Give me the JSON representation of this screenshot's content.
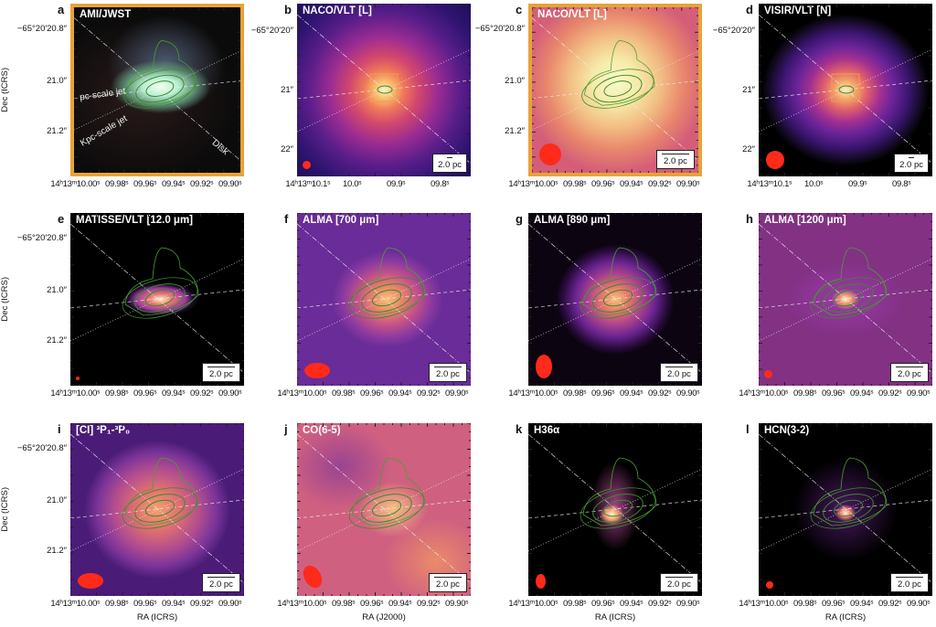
{
  "figure": {
    "panels": [
      {
        "letter": "a",
        "title": "AMI/JWST",
        "bg": "radial-gradient(ellipse 30% 16% at 52% 48%, #f4fff0 0, #b8f0d0 35%, #5a8a70 70%, rgba(40,60,50,0) 100%), radial-gradient(ellipse 35% 30% at 55% 35%, rgba(90,110,140,0.8), rgba(0,0,0,0) 100%), radial-gradient(ellipse 60% 50% at 40% 55%, #2a1a1a, #0b0b0b 100%)",
        "bordered": true,
        "yticks": [
          "−65°20′20.8″",
          "21.0″",
          "21.2″"
        ],
        "xticks": [
          "14ʰ13ᵐ10.00ˢ",
          "09.98ˢ",
          "09.96ˢ",
          "09.94ˢ",
          "09.92ˢ",
          "09.90ˢ"
        ],
        "ylabel": "Dec (ICRS)",
        "beam": null,
        "scale": null,
        "notes": [
          "pc-scale jet",
          "Kpc-scale jet",
          "Disk"
        ],
        "tickset": "A"
      },
      {
        "letter": "b",
        "title": "NACO/VLT [L]",
        "bg": "radial-gradient(circle at 50% 50%, #fbf8c0 0, #f8c070 7%, #f07a5a 16%, #d2476e 28%, #9a2c92 44%, #5a1e8a 62%, #2e1470 82%, #1e0e58 100%)",
        "bordered": false,
        "yticks": [
          "−65°20′20″",
          "21″",
          "22″"
        ],
        "xticks": [
          "14ʰ13ᵐ10.1ˢ",
          "10.0ˢ",
          "09.9ˢ",
          "09.8ˢ"
        ],
        "beam": "s",
        "scale": "2.0 pc",
        "box": true,
        "tickset": "B"
      },
      {
        "letter": "c",
        "title": "NACO/VLT [L]",
        "bg": "radial-gradient(ellipse 55% 55% at 50% 45%, #f8fbc8 0, #f6eaa8 25%, #f2be84 50%, #e8866c 75%, #d45e78 100%)",
        "bordered": true,
        "yticks": [
          "−65°20′20.8″",
          "21.0″",
          "21.2″"
        ],
        "xticks": [
          "14ʰ13ᵐ10.00ˢ",
          "09.98ˢ",
          "09.96ˢ",
          "09.94ˢ",
          "09.92ˢ",
          "09.90ˢ"
        ],
        "beam": "xl",
        "scale": "2.0 pc",
        "tickset": "A"
      },
      {
        "letter": "d",
        "title": "VISIR/VLT [N]",
        "bg": "radial-gradient(ellipse 48% 44% at 50% 50%, #fbf2b0 0, #f5a868 12%, #e0606c 26%, #a43090 42%, #6a2498 58%, #3a1670 76%, #0a0610 96%, #000 100%)",
        "bordered": false,
        "yticks": [
          "−65°20′20″",
          "21″",
          "22″"
        ],
        "xticks": [
          "14ʰ13ᵐ10.1ˢ",
          "10.0ˢ",
          "09.9ˢ",
          "09.8ˢ"
        ],
        "beam": "m",
        "scale": "2.0 pc",
        "box": true,
        "tickset": "B"
      },
      {
        "letter": "e",
        "title": "MATISSE/VLT [12.0 μm]",
        "bg": "radial-gradient(ellipse 22% 10% at 52% 50%, #fbf3c0 0, #e87a74 30%, #9a3a9a 65%, rgba(60,20,90,0.5) 85%, rgba(0,0,0,0) 100%), #000",
        "bordered": false,
        "yticks": [
          "−65°20′20.8″",
          "21.0″",
          "21.2″"
        ],
        "xticks": [
          "14ʰ13ᵐ10.00ˢ",
          "09.98ˢ",
          "09.96ˢ",
          "09.94ˢ",
          "09.92ˢ",
          "09.90ˢ"
        ],
        "ylabel": "Dec (ICRS)",
        "beam": "xs",
        "scale": "2.0 pc",
        "tickset": "A"
      },
      {
        "letter": "f",
        "title": "ALMA [700 μm]",
        "bg": "radial-gradient(ellipse 32% 28% at 52% 50%, #f7c07a 0, #ea8a68 25%, #c2508a 55%, #8a3aa0 80%, #6a2c98 100%), #5a2490",
        "bordered": false,
        "yticks": [],
        "xticks": [
          "14ʰ13ᵐ10.00ˢ",
          "09.98ˢ",
          "09.96ˢ",
          "09.94ˢ",
          "09.92ˢ",
          "09.90ˢ"
        ],
        "beam": "eh",
        "scale": "2.0 pc",
        "tickset": "A"
      },
      {
        "letter": "g",
        "title": "ALMA [890 μm]",
        "bg": "radial-gradient(ellipse 34% 32% at 50% 50%, #f7c07a 0, #e67a6a 22%, #b0448e 45%, #6a2490 68%, #2a0c40 88%, #0c0410 100%)",
        "bordered": false,
        "yticks": [],
        "xticks": [
          "14ʰ13ᵐ10.00ˢ",
          "09.98ˢ",
          "09.96ˢ",
          "09.94ˢ",
          "09.92ˢ",
          "09.90ˢ"
        ],
        "beam": "ev",
        "scale": "2.0 pc",
        "tickset": "A"
      },
      {
        "letter": "h",
        "title": "ALMA [1200 μm]",
        "bg": "radial-gradient(ellipse 8% 6% at 50% 50%, #fbf8d0 0, #f0a070 40%, rgba(160,60,160,0.8) 100%), radial-gradient(ellipse 35% 22% at 50% 50%, #7a3aa8 0, #3a1660 60%, #080410 100%)",
        "bordered": false,
        "yticks": [],
        "xticks": [
          "14ʰ13ᵐ10.00ˢ",
          "09.98ˢ",
          "09.96ˢ",
          "09.94ˢ",
          "09.92ˢ",
          "09.90ˢ"
        ],
        "beam": "s",
        "scale": "2.0 pc",
        "tickset": "A"
      },
      {
        "letter": "i",
        "title": "[CI] ³P₁-³P₀",
        "bg": "radial-gradient(ellipse 42% 40% at 50% 50%, #f4a070 0, #e07070 30%, #b04c90 60%, #7a3498 82%, #4a1c78 100%)",
        "bordered": false,
        "yticks": [
          "−65°20′20.8″",
          "21.0″",
          "21.2″"
        ],
        "xticks": [
          "14ʰ13ᵐ10.00ˢ",
          "09.98ˢ",
          "09.96ˢ",
          "09.94ˢ",
          "09.92ˢ",
          "09.90ˢ"
        ],
        "ylabel": "Dec (ICRS)",
        "xlabel": "RA (ICRS)",
        "beam": "eh",
        "scale": "2.0 pc",
        "tickset": "A"
      },
      {
        "letter": "j",
        "title": "CO(6-5)",
        "bg": "radial-gradient(ellipse 20% 16% at 55% 50%, #f6c080 0, rgba(232,122,108,0) 100%), radial-gradient(ellipse 30% 25% at 25% 25%, rgba(140,60,150,0.8), rgba(0,0,0,0)), radial-gradient(ellipse 30% 25% at 80% 80%, rgba(240,150,100,0.8), rgba(0,0,0,0)), #d06080",
        "bordered": false,
        "yticks": [],
        "xticks": [
          "14ʰ13ᵐ10.00ˢ",
          "09.98ˢ",
          "09.96ˢ",
          "09.94ˢ",
          "09.92ˢ",
          "09.90ˢ"
        ],
        "xlabel": "RA (J2000)",
        "beam": "et",
        "scale": "2.0 pc",
        "tickset": "A"
      },
      {
        "letter": "k",
        "title": "H36α",
        "bg": "radial-gradient(ellipse 7% 6% at 48% 53%, #fbf8d0 0, #f0a070 50%, rgba(180,70,160,0) 100%), radial-gradient(ellipse 14% 26% at 50% 48%, rgba(180,70,150,0.9), rgba(0,0,0,0) 100%), #000",
        "bordered": false,
        "yticks": [],
        "xticks": [
          "14ʰ13ᵐ10.00ˢ",
          "09.98ˢ",
          "09.96ˢ",
          "09.94ˢ",
          "09.92ˢ",
          "09.90ˢ"
        ],
        "xlabel": "RA (ICRS)",
        "beam": "kv",
        "scale": "2.0 pc",
        "tickset": "A"
      },
      {
        "letter": "l",
        "title": "HCN(3-2)",
        "bg": "radial-gradient(ellipse 6% 5% at 50% 52%, #fbf8d0 0, #e87a70 50%, rgba(130,50,150,0) 100%), radial-gradient(ellipse 30% 30% at 50% 50%, rgba(90,30,120,0.8), rgba(0,0,0,0) 100%), #000",
        "bordered": false,
        "yticks": [],
        "xticks": [
          "14ʰ13ᵐ10.00ˢ",
          "09.98ˢ",
          "09.96ˢ",
          "09.94ˢ",
          "09.92ˢ",
          "09.90ˢ"
        ],
        "xlabel": "RA (ICRS)",
        "beam": "xs2",
        "scale": "2.0 pc",
        "tickset": "A"
      }
    ]
  }
}
